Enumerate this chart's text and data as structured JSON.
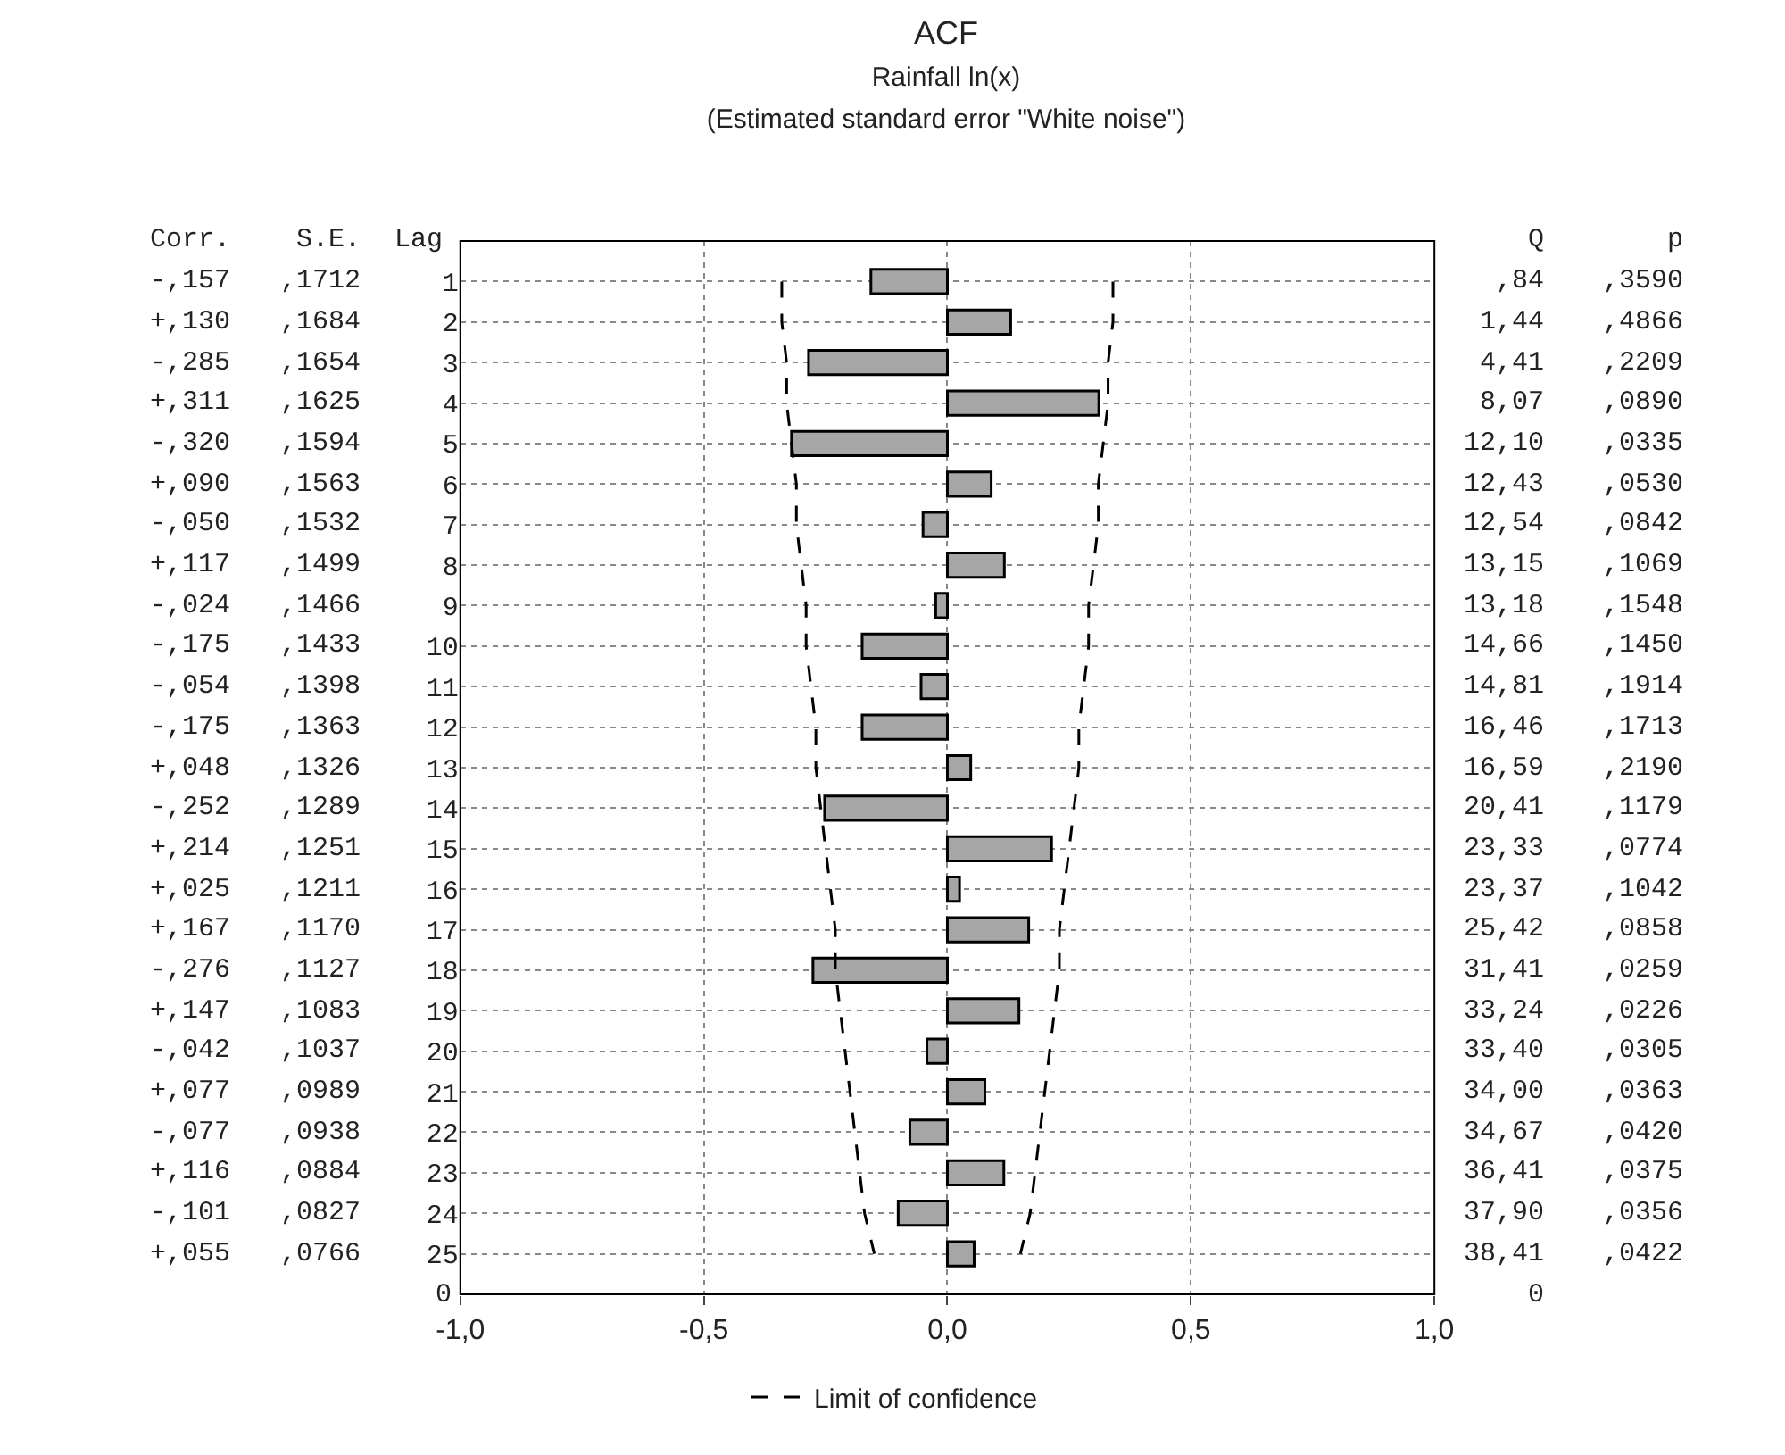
{
  "chart_data": {
    "type": "bar",
    "orientation": "horizontal",
    "title": "ACF",
    "subtitle": "Rainfall ln(x)\n(Estimated standard error \"White noise\")",
    "categories": [
      "1",
      "2",
      "3",
      "4",
      "5",
      "6",
      "7",
      "8",
      "9",
      "10",
      "11",
      "12",
      "13",
      "14",
      "15",
      "16",
      "17",
      "18",
      "19",
      "20",
      "21",
      "22",
      "23",
      "24",
      "25"
    ],
    "series": [
      {
        "color": "#a6a6a6",
        "values": [
          -0.157,
          0.13,
          -0.285,
          0.311,
          -0.32,
          0.09,
          -0.05,
          0.117,
          -0.024,
          -0.175,
          -0.054,
          -0.175,
          0.048,
          -0.252,
          0.214,
          0.025,
          0.167,
          -0.276,
          0.147,
          -0.042,
          0.077,
          -0.077,
          0.116,
          -0.101,
          0.055
        ]
      },
      {
        "type": "line",
        "name": "Limit of confidence",
        "color": "#000000",
        "line_style": "dashed",
        "values": [
          -0.34,
          -0.34,
          -0.33,
          -0.33,
          -0.32,
          -0.31,
          -0.31,
          -0.3,
          -0.29,
          -0.29,
          -0.28,
          -0.27,
          -0.27,
          -0.26,
          -0.25,
          -0.24,
          -0.23,
          -0.23,
          -0.22,
          -0.21,
          -0.2,
          -0.19,
          -0.18,
          -0.17,
          -0.15
        ]
      },
      {
        "type": "line",
        "color": "#000000",
        "line_style": "dashed",
        "values": [
          0.34,
          0.34,
          0.33,
          0.33,
          0.32,
          0.31,
          0.31,
          0.3,
          0.29,
          0.29,
          0.28,
          0.27,
          0.27,
          0.26,
          0.25,
          0.24,
          0.23,
          0.23,
          0.22,
          0.21,
          0.2,
          0.19,
          0.18,
          0.17,
          0.15
        ]
      }
    ],
    "xlim": [
      -1,
      1
    ],
    "xticks": [
      {
        "value": -1,
        "label": "-1,0"
      },
      {
        "value": -0.5,
        "label": "-0,5"
      },
      {
        "value": 0,
        "label": "0,0"
      },
      {
        "value": 0.5,
        "label": "0,5"
      },
      {
        "value": 1,
        "label": "1,0"
      }
    ],
    "grid": true,
    "legend": "bottom",
    "annotations": [
      "Lag",
      "Corr.\n-,157\n+,130\n-,285\n+,311\n-,320\n+,090\n-,050\n+,117\n-,024\n-,175\n-,054\n-,175\n+,048\n-,252\n+,214\n+,025\n+,167\n-,276\n+,147\n-,042\n+,077\n-,077\n+,116\n-,101\n+,055",
      "S.E.\n,1712\n,1684\n,1654\n,1625\n,1594\n,1563\n,1532\n,1499\n,1466\n,1433\n,1398\n,1363\n,1326\n,1289\n,1251\n,1211\n,1170\n,1127\n,1083\n,1037\n,0989\n,0938\n,0884\n,0827\n,0766",
      "Q\n,84\n1,44\n4,41\n8,07\n12,10\n12,43\n12,54\n13,15\n13,18\n14,66\n14,81\n16,46\n16,59\n20,41\n23,33\n23,37\n25,42\n31,41\n33,24\n33,40\n34,00\n34,67\n36,41\n37,90\n38,41\n0",
      "p\n,3590\n,4866\n,2209\n,0890\n,0335\n,0530\n,0842\n,1069\n,1548\n,1450\n,1914\n,1713\n,2190\n,1179\n,0774\n,1042\n,0858\n,0259\n,0226\n,0305\n,0363\n,0420\n,0375\n,0356\n,0422",
      "0"
    ]
  }
}
